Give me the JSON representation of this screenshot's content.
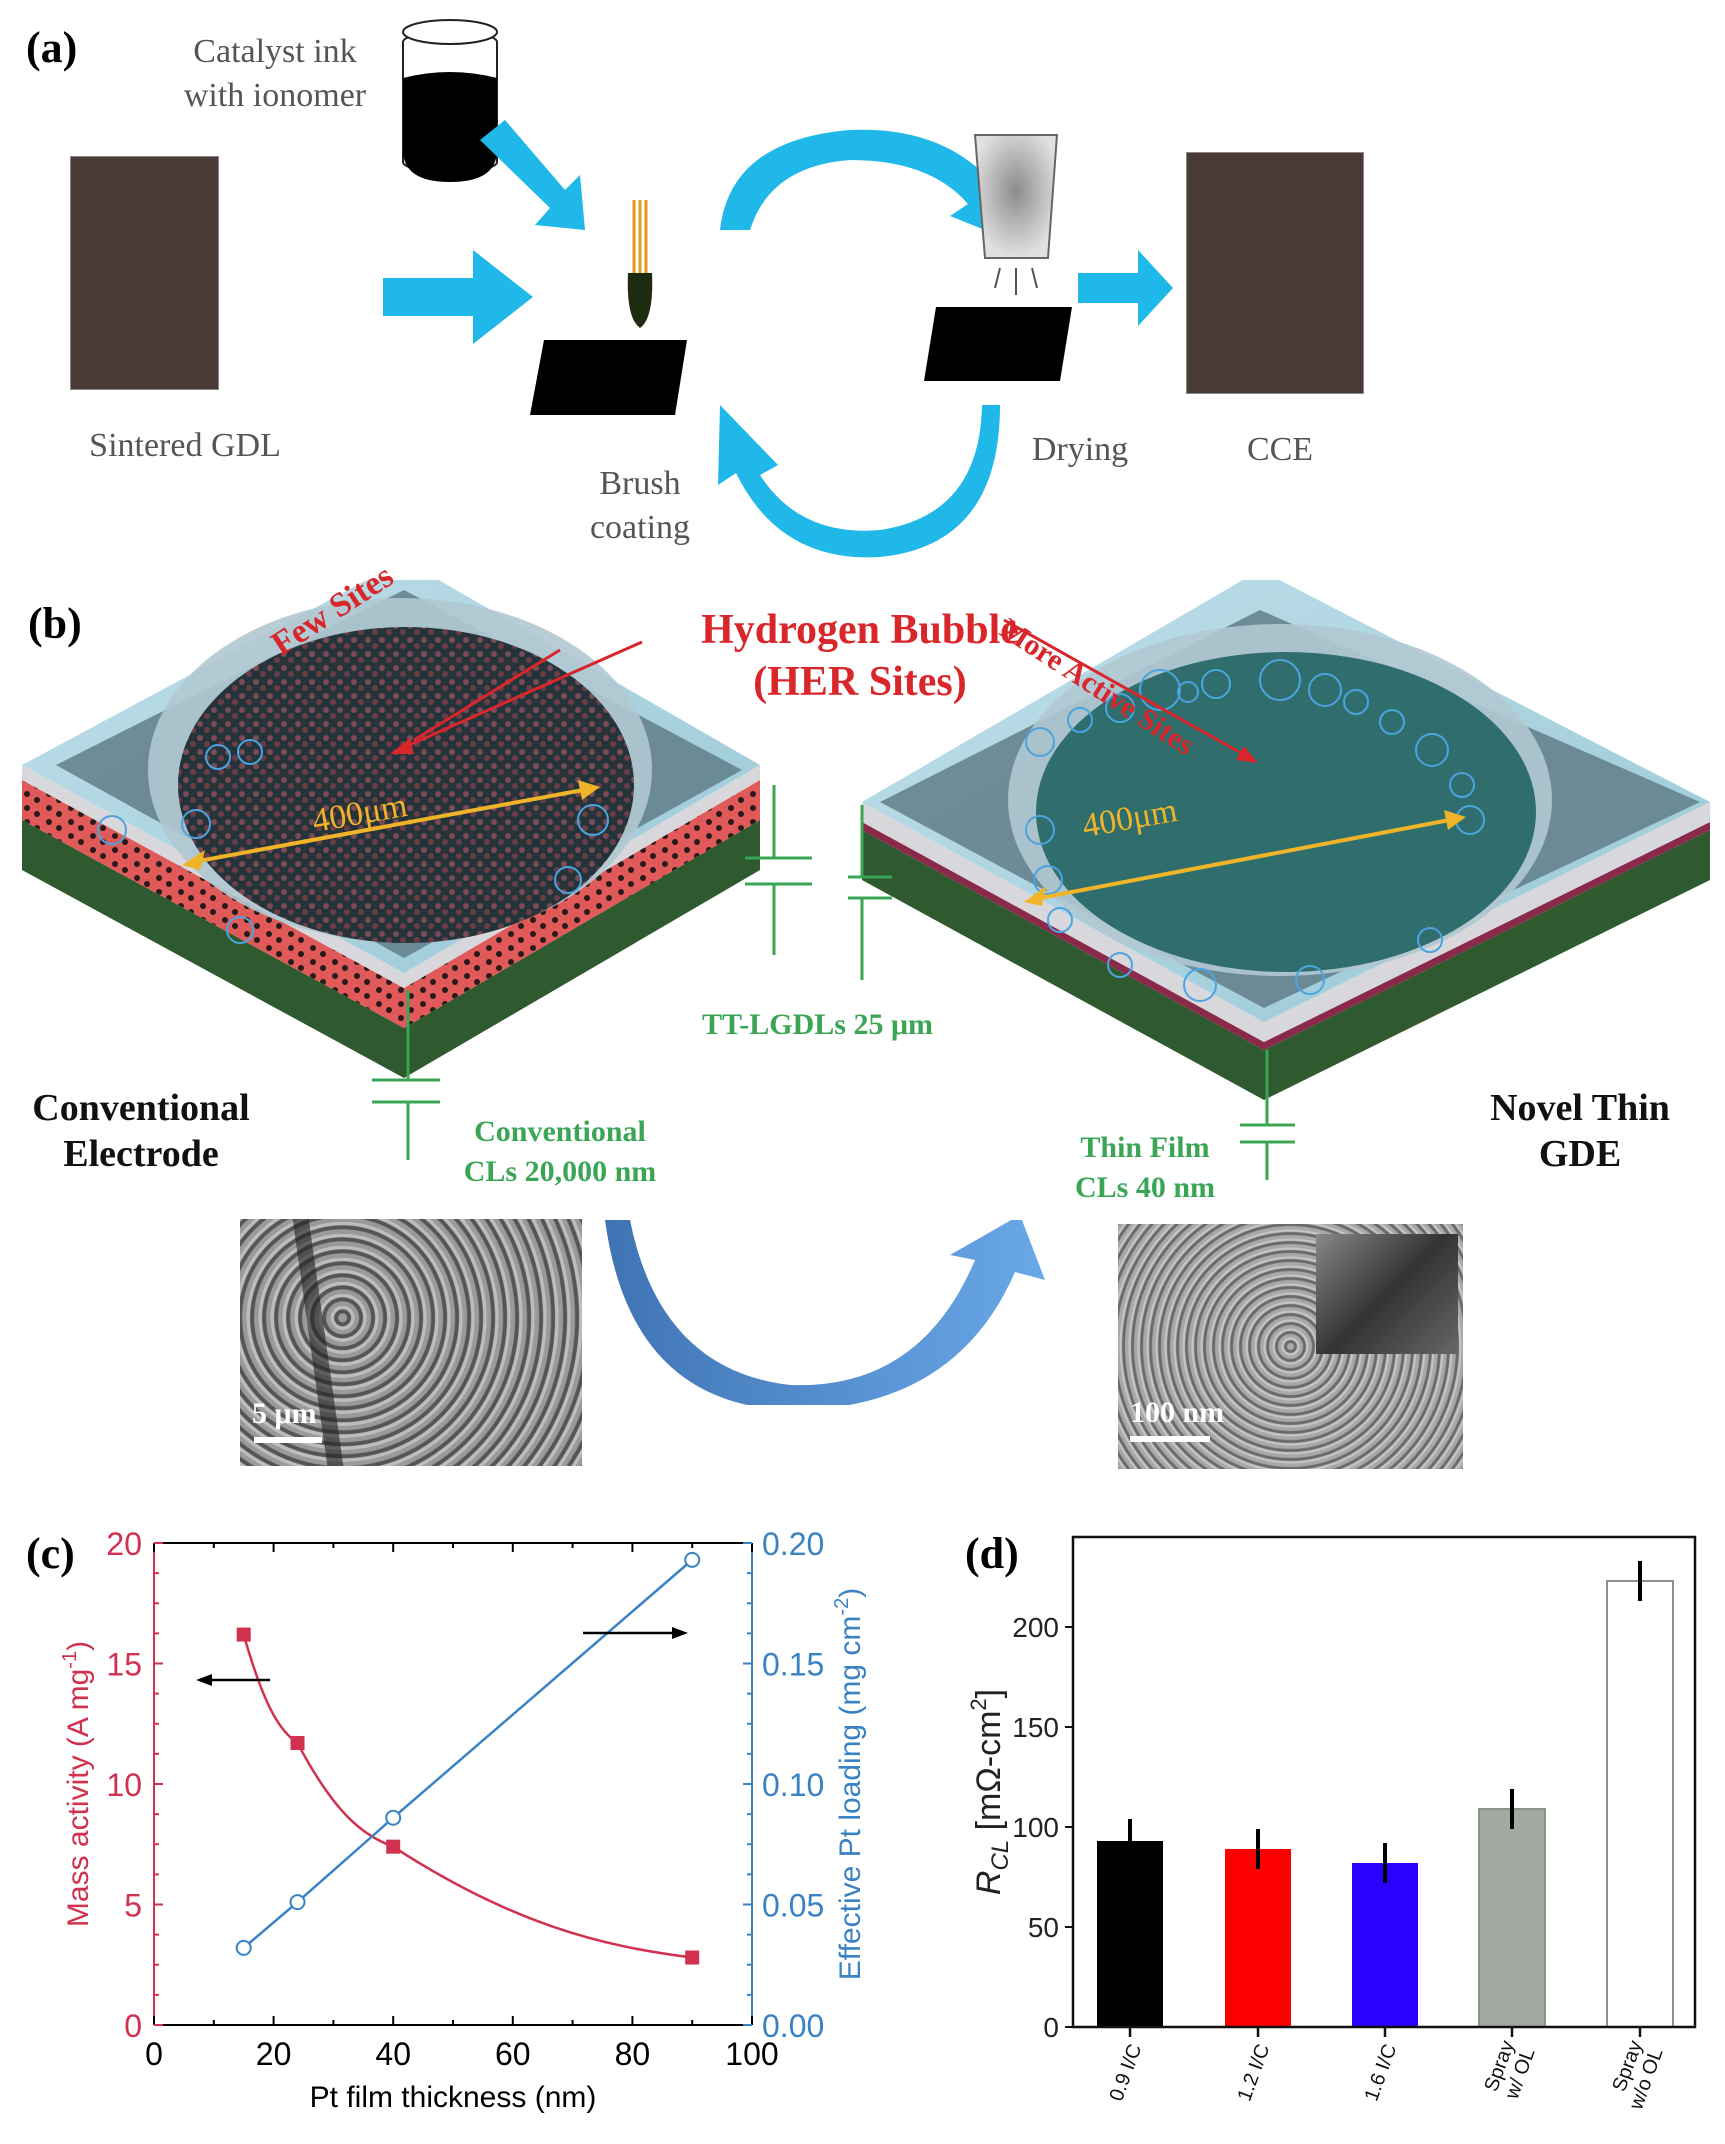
{
  "panel_a": {
    "label": "(a)",
    "ink_label_line1": "Catalyst ink",
    "ink_label_line2": "with ionomer",
    "step_sintered": "Sintered GDL",
    "step_brush_line1": "Brush",
    "step_brush_line2": "coating",
    "step_drying": "Drying",
    "step_cce": "CCE",
    "colors": {
      "arrow": "#1fb8e8",
      "sample": "#4a3a36",
      "substrate": "#000000"
    }
  },
  "panel_b": {
    "label": "(b)",
    "title_line1": "Hydrogen Bubble",
    "title_line2": "(HER Sites)",
    "few_sites": "Few Sites",
    "more_active_sites": "More Active Sites",
    "diameter_left": "400μm",
    "diameter_right": "400μm",
    "tt_lgdls": "TT-LGDLs 25 μm",
    "conventional_electrode_line1": "Conventional",
    "conventional_electrode_line2": "Electrode",
    "conventional_cls_line1": "Conventional",
    "conventional_cls_line2": "CLs 20,000 nm",
    "novel_line1": "Novel Thin",
    "novel_line2": "GDE",
    "thin_film_line1": "Thin Film",
    "thin_film_line2": "CLs 40 nm",
    "sem_left_scale": "5 μm",
    "sem_right_scale": "100 nm",
    "colors": {
      "red": "#d9262b",
      "green": "#3aa655",
      "gold": "#f0b429"
    }
  },
  "chart_data": [
    {
      "panel": "(c)",
      "type": "line",
      "title": "",
      "xlabel": "Pt film thickness (nm)",
      "x_ticks": [
        "0",
        "20",
        "40",
        "60",
        "80",
        "100"
      ],
      "xlim": [
        0,
        100
      ],
      "ylabel_left": "Mass activity (A mg⁻¹)",
      "ylabel_left_main": "Mass activity (A mg",
      "ylabel_left_sup": "-1",
      "ylabel_left_close": ")",
      "y_ticks_left": [
        "0",
        "5",
        "10",
        "15",
        "20"
      ],
      "ylim_left": [
        0,
        20
      ],
      "ylabel_right": "Effective Pt loading (mg cm⁻²)",
      "ylabel_right_main": "Effective Pt loading (mg cm",
      "ylabel_right_sup": "-2",
      "ylabel_right_close": ")",
      "y_ticks_right": [
        "0.00",
        "0.05",
        "0.10",
        "0.15",
        "0.20"
      ],
      "ylim_right": [
        0,
        0.2
      ],
      "series": [
        {
          "name": "Mass activity",
          "axis": "left",
          "marker": "filled-square",
          "color": "#d0314f",
          "x": [
            15,
            24,
            40,
            90
          ],
          "values": [
            16.2,
            11.7,
            7.4,
            2.8
          ]
        },
        {
          "name": "Effective Pt loading",
          "axis": "right",
          "marker": "open-circle",
          "color": "#3a82c4",
          "x": [
            15,
            24,
            40,
            90
          ],
          "values": [
            0.032,
            0.051,
            0.086,
            0.193
          ]
        }
      ],
      "annotations": [
        "arrow pointing left to left axis",
        "arrow pointing right to right axis"
      ]
    },
    {
      "panel": "(d)",
      "type": "bar",
      "title": "",
      "categories": [
        "0.9 I/C",
        "1.2 I/C",
        "1.6 I/C",
        "Spray w/ OL",
        "Spray w/o OL"
      ],
      "category_lines": [
        [
          "0.9 I/C"
        ],
        [
          "1.2 I/C"
        ],
        [
          "1.6 I/C"
        ],
        [
          "Spray",
          "w/ OL"
        ],
        [
          "Spray",
          "w/o OL"
        ]
      ],
      "values": [
        93,
        89,
        82,
        109,
        223
      ],
      "errors": [
        11,
        10,
        10,
        10,
        10
      ],
      "colors": [
        "#000000",
        "#ff0000",
        "#2a00ff",
        "#a3a8a3",
        "#ffffff"
      ],
      "ylabel": "R_CL [mΩ-cm²]",
      "ylabel_r": "R",
      "ylabel_sub": "CL",
      "ylabel_units": "[mΩ-cm",
      "ylabel_sup": "2",
      "ylabel_close": "]",
      "y_ticks": [
        "0",
        "50",
        "100",
        "150",
        "200"
      ],
      "ylim": [
        0,
        245
      ]
    }
  ]
}
